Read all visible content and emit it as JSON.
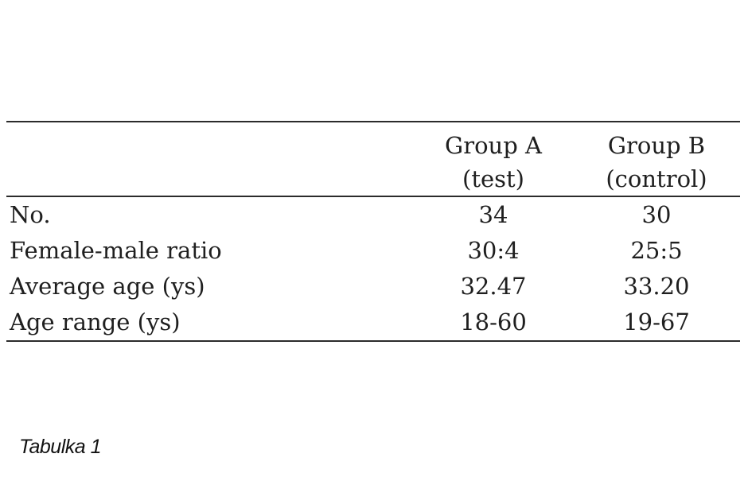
{
  "table": {
    "headers": [
      {
        "line1": "",
        "line2": ""
      },
      {
        "line1": "Group A",
        "line2": "(test)"
      },
      {
        "line1": "Group B",
        "line2": "(control)"
      }
    ],
    "rows": [
      {
        "label": "No.",
        "group_a": "34",
        "group_b": "30"
      },
      {
        "label": "Female-male ratio",
        "group_a": "30:4",
        "group_b": "25:5"
      },
      {
        "label": "Average age (ys)",
        "group_a": "32.47",
        "group_b": "33.20"
      },
      {
        "label": "Age range (ys)",
        "group_a": "18-60",
        "group_b": "19-67"
      }
    ]
  },
  "caption": "Tabulka 1"
}
